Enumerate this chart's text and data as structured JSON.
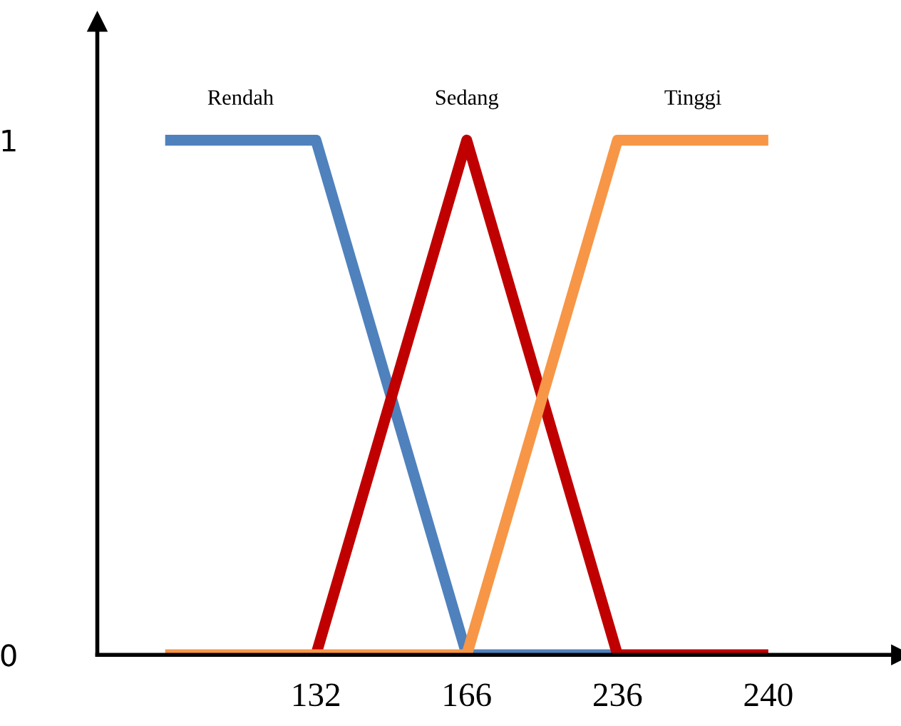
{
  "chart_data": {
    "type": "line",
    "categories": [
      null,
      "132",
      "166",
      "236",
      "240"
    ],
    "series": [
      {
        "name": "Rendah",
        "color": "#4f81bd",
        "values": [
          1,
          1,
          0,
          0,
          null
        ]
      },
      {
        "name": "Sedang",
        "color": "#c00000",
        "values": [
          null,
          0,
          1,
          0,
          0
        ]
      },
      {
        "name": "Tinggi",
        "color": "#f79646",
        "values": [
          0,
          0,
          0,
          1,
          1
        ]
      }
    ],
    "ylim": [
      0,
      1.23
    ],
    "yticks": [
      0,
      1
    ],
    "grid": false,
    "legend": false,
    "marker": "none",
    "line_style": "solid"
  }
}
